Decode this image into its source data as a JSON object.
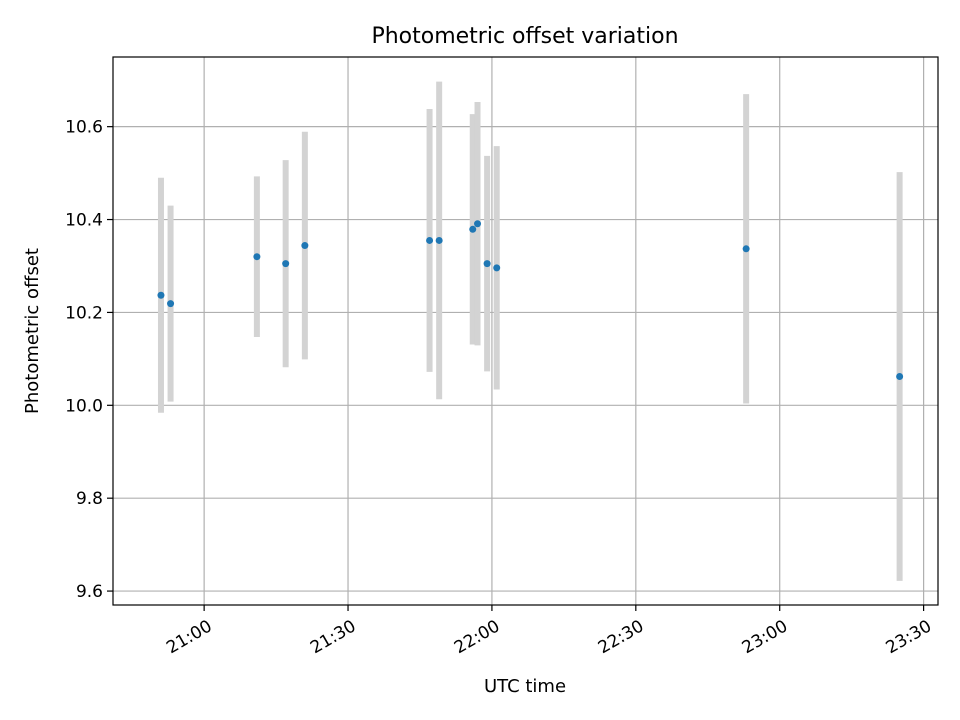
{
  "chart_data": {
    "type": "scatter",
    "title": "Photometric offset variation",
    "xlabel": "UTC time",
    "ylabel": "Photometric offset",
    "xlim": [
      "20:41",
      "23:33"
    ],
    "ylim": [
      9.57,
      10.75
    ],
    "x_ticks": [
      "21:00",
      "21:30",
      "22:00",
      "22:30",
      "23:00",
      "23:30"
    ],
    "y_ticks": [
      9.6,
      9.8,
      10.0,
      10.2,
      10.4,
      10.6
    ],
    "y_tick_labels": [
      "9.6",
      "9.8",
      "10.0",
      "10.2",
      "10.4",
      "10.6"
    ],
    "grid": true,
    "errorbar_color": "#d3d3d3",
    "marker_color": "#1f77b4",
    "points": [
      {
        "x": "20:51",
        "y": 10.237,
        "err": 0.253
      },
      {
        "x": "20:53",
        "y": 10.219,
        "err": 0.211
      },
      {
        "x": "21:11",
        "y": 10.32,
        "err": 0.173
      },
      {
        "x": "21:17",
        "y": 10.305,
        "err": 0.223
      },
      {
        "x": "21:21",
        "y": 10.344,
        "err": 0.245
      },
      {
        "x": "21:47",
        "y": 10.355,
        "err": 0.283
      },
      {
        "x": "21:49",
        "y": 10.355,
        "err": 0.342
      },
      {
        "x": "21:56",
        "y": 10.379,
        "err": 0.248
      },
      {
        "x": "21:57",
        "y": 10.391,
        "err": 0.262
      },
      {
        "x": "21:59",
        "y": 10.305,
        "err": 0.232
      },
      {
        "x": "22:01",
        "y": 10.296,
        "err": 0.262
      },
      {
        "x": "22:53",
        "y": 10.337,
        "err": 0.333
      },
      {
        "x": "23:25",
        "y": 10.062,
        "err": 0.44
      }
    ]
  }
}
